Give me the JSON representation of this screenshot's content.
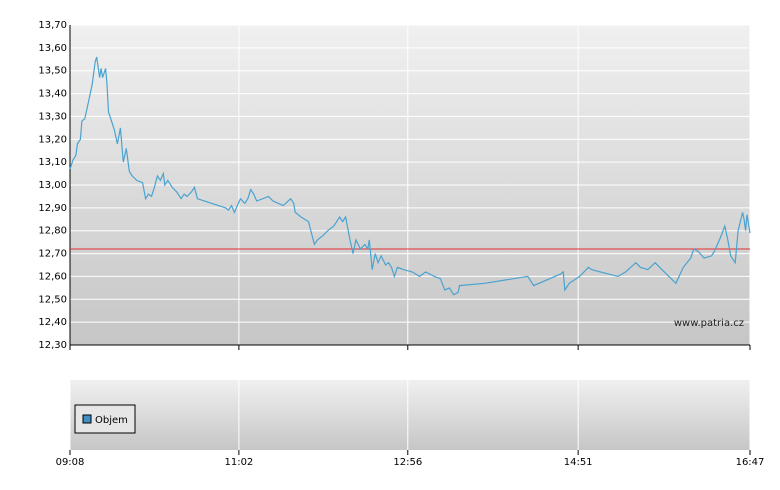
{
  "chart_data": {
    "type": "line",
    "x": [
      548,
      550,
      552,
      553,
      555,
      556,
      558,
      560,
      563,
      565,
      566,
      568,
      569,
      570,
      572,
      573,
      574,
      576,
      578,
      580,
      582,
      584,
      586,
      588,
      590,
      593,
      597,
      599,
      601,
      603,
      605,
      607,
      609,
      611,
      612,
      614,
      617,
      620,
      623,
      625,
      627,
      630,
      632,
      634,
      653,
      655,
      657,
      659,
      663,
      666,
      668,
      670,
      672,
      674,
      682,
      685,
      692,
      697,
      699,
      700,
      704,
      709,
      713,
      715,
      719,
      722,
      726,
      728,
      730,
      732,
      734,
      737,
      739,
      741,
      744,
      747,
      749,
      750,
      752,
      754,
      756,
      758,
      761,
      763,
      765,
      767,
      769,
      773,
      779,
      784,
      788,
      794,
      798,
      801,
      804,
      807,
      810,
      811,
      828,
      857,
      861,
      879,
      881,
      882,
      885,
      892,
      898,
      900,
      906,
      918,
      923,
      930,
      933,
      938,
      943,
      946,
      957,
      962,
      967,
      969,
      972,
      976,
      981,
      983,
      987,
      990,
      992,
      994,
      997,
      999,
      1002,
      1003,
      1004,
      1005,
      1007
    ],
    "values": [
      13.07,
      13.11,
      13.13,
      13.18,
      13.2,
      13.28,
      13.29,
      13.35,
      13.44,
      13.54,
      13.56,
      13.47,
      13.51,
      13.47,
      13.51,
      13.44,
      13.32,
      13.28,
      13.24,
      13.18,
      13.25,
      13.1,
      13.16,
      13.06,
      13.04,
      13.02,
      13.01,
      12.94,
      12.96,
      12.95,
      12.99,
      13.04,
      13.02,
      13.05,
      13.0,
      13.02,
      12.99,
      12.97,
      12.94,
      12.96,
      12.95,
      12.97,
      12.99,
      12.94,
      12.9,
      12.89,
      12.91,
      12.88,
      12.94,
      12.92,
      12.94,
      12.98,
      12.96,
      12.93,
      12.95,
      12.93,
      12.91,
      12.94,
      12.92,
      12.88,
      12.86,
      12.84,
      12.74,
      12.76,
      12.78,
      12.8,
      12.82,
      12.84,
      12.86,
      12.84,
      12.86,
      12.76,
      12.7,
      12.76,
      12.72,
      12.74,
      12.72,
      12.76,
      12.63,
      12.7,
      12.66,
      12.69,
      12.65,
      12.66,
      12.64,
      12.6,
      12.64,
      12.63,
      12.62,
      12.6,
      12.62,
      12.6,
      12.59,
      12.54,
      12.55,
      12.52,
      12.53,
      12.56,
      12.57,
      12.6,
      12.56,
      12.61,
      12.62,
      12.54,
      12.57,
      12.6,
      12.64,
      12.63,
      12.62,
      12.6,
      12.62,
      12.66,
      12.64,
      12.63,
      12.66,
      12.64,
      12.57,
      12.64,
      12.68,
      12.72,
      12.71,
      12.68,
      12.69,
      12.71,
      12.77,
      12.82,
      12.76,
      12.69,
      12.66,
      12.8,
      12.88,
      12.85,
      12.8,
      12.87,
      12.79
    ],
    "line_color": "#4aa3d0",
    "xlim": [
      548,
      1007
    ],
    "xticks": [
      {
        "value": 548,
        "label": "09:08"
      },
      {
        "value": 662,
        "label": "11:02"
      },
      {
        "value": 776,
        "label": "12:56"
      },
      {
        "value": 891,
        "label": "14:51"
      },
      {
        "value": 1007,
        "label": "16:47"
      }
    ],
    "ylim": [
      12.3,
      13.7
    ],
    "yticks": [
      {
        "value": 12.3,
        "label": "12,30"
      },
      {
        "value": 12.4,
        "label": "12,40"
      },
      {
        "value": 12.5,
        "label": "12,50"
      },
      {
        "value": 12.6,
        "label": "12,60"
      },
      {
        "value": 12.7,
        "label": "12,70"
      },
      {
        "value": 12.8,
        "label": "12,80"
      },
      {
        "value": 12.9,
        "label": "12,90"
      },
      {
        "value": 13.0,
        "label": "13,00"
      },
      {
        "value": 13.1,
        "label": "13,10"
      },
      {
        "value": 13.2,
        "label": "13,20"
      },
      {
        "value": 13.3,
        "label": "13,30"
      },
      {
        "value": 13.4,
        "label": "13,40"
      },
      {
        "value": 13.5,
        "label": "13,50"
      },
      {
        "value": 13.6,
        "label": "13,60"
      },
      {
        "value": 13.7,
        "label": "13,70"
      }
    ],
    "grid": true,
    "reference_line": {
      "value": 12.72,
      "color": "#e03030"
    },
    "watermark": "www.patria.cz",
    "volume_legend": {
      "name": "Objem",
      "color": "#3d8fc4"
    }
  }
}
